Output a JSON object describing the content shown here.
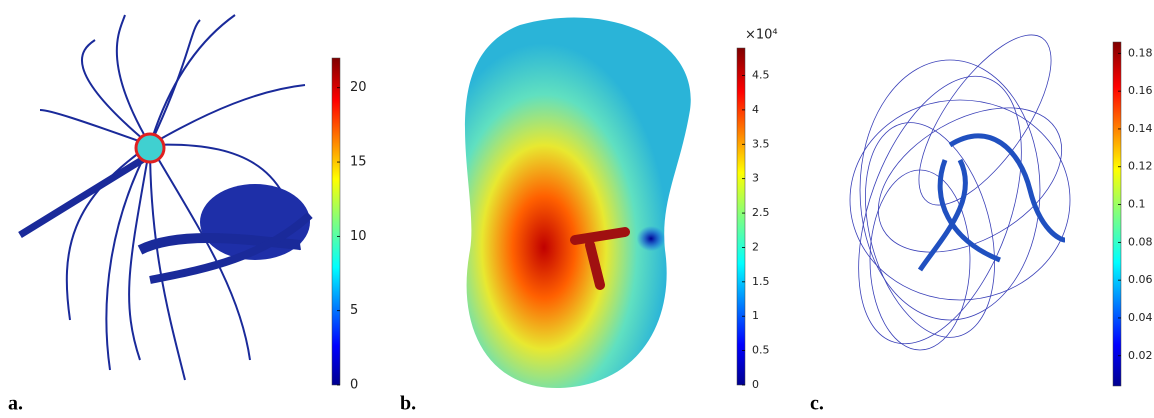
{
  "panels": [
    {
      "label": "a.",
      "colorbar": {
        "lim": [
          0,
          22
        ],
        "ticks": [
          0,
          5,
          10,
          15,
          20
        ]
      }
    },
    {
      "label": "b.",
      "colorbar": {
        "multiplier": "×10⁴",
        "lim": [
          0,
          4.9
        ],
        "ticks": [
          0,
          0.5,
          1,
          1.5,
          2,
          2.5,
          3,
          3.5,
          4,
          4.5
        ]
      }
    },
    {
      "label": "c.",
      "colorbar": {
        "lim": [
          0.004,
          0.186
        ],
        "ticks": [
          0.02,
          0.04,
          0.06,
          0.08,
          0.1,
          0.12,
          0.14,
          0.16,
          0.18
        ]
      }
    }
  ]
}
